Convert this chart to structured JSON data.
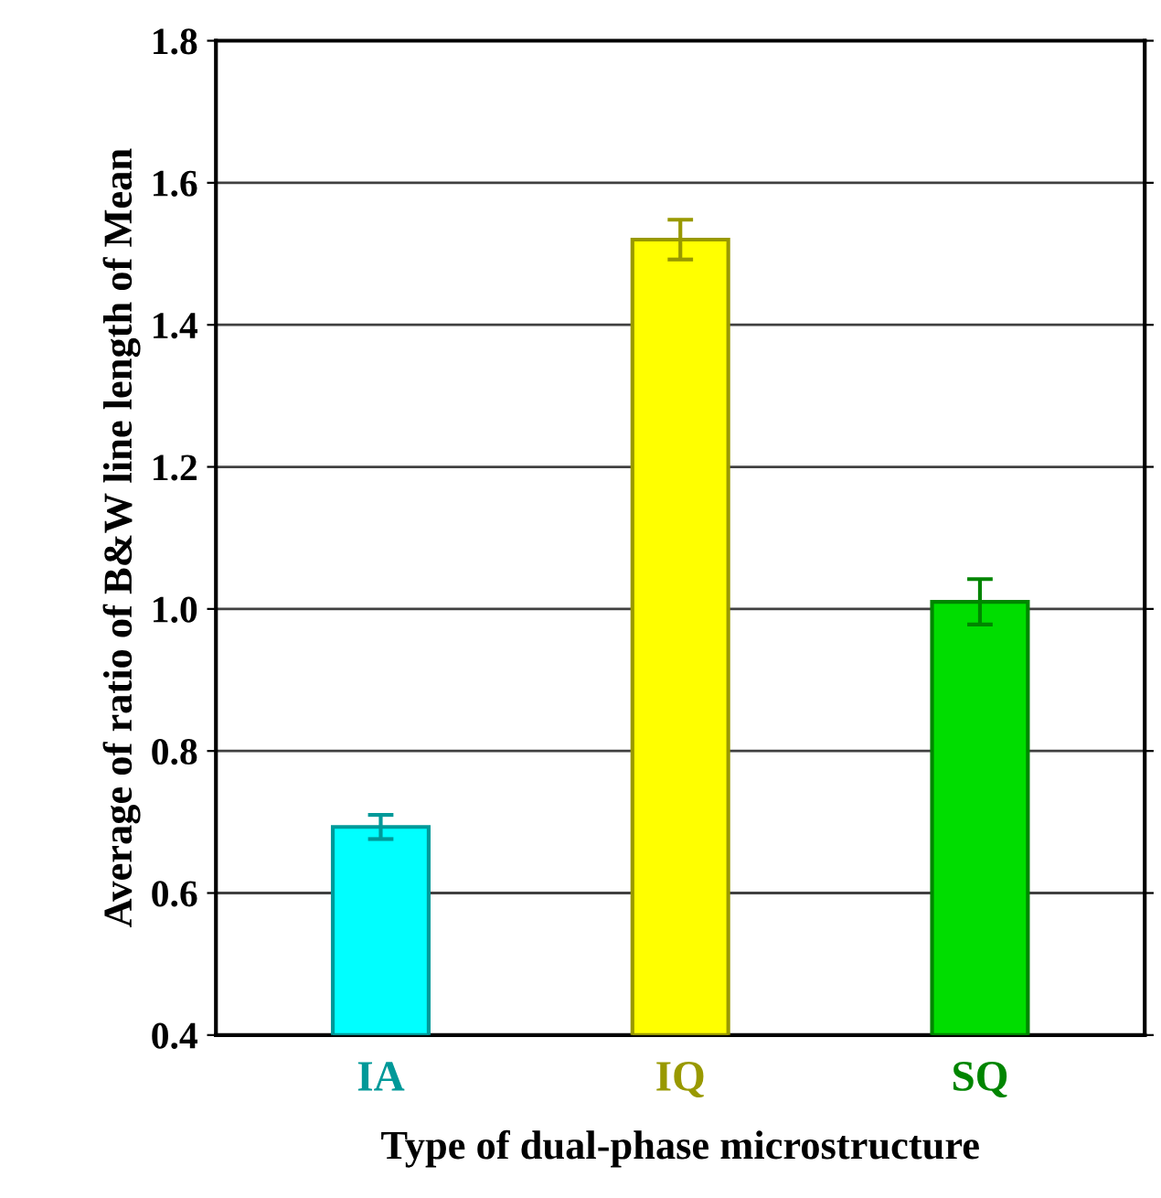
{
  "chart_data": {
    "type": "bar",
    "xlabel": "Type of dual-phase microstructure",
    "ylabel": "Average of ratio of B&W line length of Mean",
    "categories": [
      "IA",
      "IQ",
      "SQ"
    ],
    "values": [
      0.693,
      1.52,
      1.01
    ],
    "errors": [
      0.017,
      0.028,
      0.032
    ],
    "colors": [
      "#00ffff",
      "#ffff00",
      "#00dd00"
    ],
    "ylim": [
      0.4,
      1.8
    ],
    "yticks": [
      0.4,
      0.6,
      0.8,
      {
        "value": 1.0,
        "label": "1.0"
      },
      1.2,
      1.4,
      1.6,
      1.8
    ],
    "grid": "y",
    "legend": false
  }
}
